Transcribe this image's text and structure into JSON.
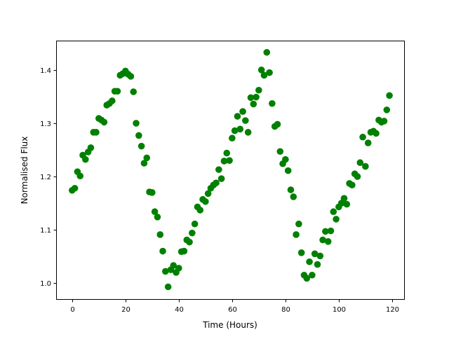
{
  "chart_data": {
    "type": "scatter",
    "title": "",
    "xlabel": "Time (Hours)",
    "ylabel": "Normalised Flux",
    "xlim": [
      -6,
      124.5
    ],
    "ylim": [
      0.97,
      1.455
    ],
    "xticks": [
      0,
      20,
      40,
      60,
      80,
      100,
      120
    ],
    "yticks": [
      1.0,
      1.1,
      1.2,
      1.3,
      1.4
    ],
    "xtick_labels": [
      "0",
      "20",
      "40",
      "60",
      "80",
      "100",
      "120"
    ],
    "ytick_labels": [
      "1.0",
      "1.1",
      "1.2",
      "1.3",
      "1.4"
    ],
    "grid": false,
    "marker_color": "#008000",
    "series": [
      {
        "x": [
          0,
          1,
          2,
          3,
          4,
          5,
          6,
          7,
          8,
          9,
          10,
          11,
          12,
          13,
          14,
          15,
          16,
          17,
          18,
          19,
          20,
          21,
          22,
          23,
          24,
          25,
          26,
          27,
          28,
          29,
          30,
          31,
          32,
          33,
          34,
          35,
          36,
          37,
          38,
          39,
          40,
          41,
          42,
          43,
          44,
          45,
          46,
          47,
          48,
          49,
          50,
          51,
          52,
          53,
          54,
          55,
          56,
          57,
          58,
          59,
          60,
          61,
          62,
          63,
          64,
          65,
          66,
          67,
          68,
          69,
          70,
          71,
          72,
          73,
          74,
          75,
          76,
          77,
          78,
          79,
          80,
          81,
          82,
          83,
          84,
          85,
          86,
          87,
          88,
          89,
          90,
          91,
          92,
          93,
          94,
          95,
          96,
          97,
          98,
          99,
          100,
          101,
          102,
          103,
          104,
          105,
          106,
          107,
          108,
          109,
          110,
          111,
          112,
          113,
          114,
          115,
          116,
          117,
          118,
          119
        ],
        "y": [
          1.174,
          1.178,
          1.209,
          1.201,
          1.24,
          1.232,
          1.246,
          1.254,
          1.283,
          1.283,
          1.309,
          1.306,
          1.302,
          1.334,
          1.337,
          1.342,
          1.36,
          1.36,
          1.39,
          1.393,
          1.398,
          1.392,
          1.388,
          1.359,
          1.3,
          1.277,
          1.257,
          1.225,
          1.235,
          1.171,
          1.17,
          1.134,
          1.124,
          1.091,
          1.06,
          1.022,
          0.993,
          1.025,
          1.033,
          1.02,
          1.028,
          1.059,
          1.06,
          1.081,
          1.077,
          1.094,
          1.111,
          1.143,
          1.137,
          1.157,
          1.153,
          1.168,
          1.178,
          1.184,
          1.188,
          1.213,
          1.196,
          1.229,
          1.244,
          1.23,
          1.272,
          1.286,
          1.313,
          1.289,
          1.322,
          1.305,
          1.283,
          1.348,
          1.336,
          1.349,
          1.362,
          1.4,
          1.39,
          1.433,
          1.395,
          1.337,
          1.294,
          1.298,
          1.247,
          1.224,
          1.232,
          1.211,
          1.175,
          1.162,
          1.091,
          1.111,
          1.057,
          1.015,
          1.009,
          1.04,
          1.015,
          1.055,
          1.035,
          1.051,
          1.081,
          1.097,
          1.078,
          1.098,
          1.134,
          1.12,
          1.143,
          1.15,
          1.159,
          1.148,
          1.187,
          1.184,
          1.205,
          1.2,
          1.226,
          1.274,
          1.219,
          1.263,
          1.283,
          1.285,
          1.281,
          1.306,
          1.302,
          1.304,
          1.325,
          1.352
        ]
      }
    ]
  }
}
